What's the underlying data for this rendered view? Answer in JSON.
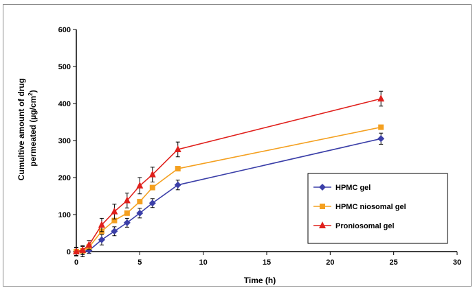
{
  "chart_data": {
    "type": "line",
    "title": "",
    "xlabel": "Time (h)",
    "ylabel_line1": "Cumultive amount of drug",
    "ylabel_line2": "permeated (µg/cm",
    "ylabel_superscript": "2",
    "ylabel_close": ")",
    "xlim": [
      0,
      30
    ],
    "ylim": [
      0,
      600
    ],
    "xticks": [
      0,
      5,
      10,
      15,
      20,
      25,
      30
    ],
    "yticks": [
      0,
      100,
      200,
      300,
      400,
      500,
      600
    ],
    "grid": false,
    "legend_position": "bottom-right",
    "x": [
      0,
      0.5,
      1,
      2,
      3,
      4,
      5,
      6,
      8,
      24
    ],
    "series": [
      {
        "name": "HPMC gel",
        "color": "#3b3fa8",
        "marker": "diamond",
        "values": [
          0,
          0,
          3,
          32,
          55,
          78,
          104,
          131,
          180,
          305
        ],
        "errors": [
          12,
          14,
          8,
          14,
          12,
          12,
          13,
          12,
          13,
          15
        ]
      },
      {
        "name": "HPMC niosomal gel",
        "color": "#f4a020",
        "marker": "square",
        "values": [
          0,
          2,
          12,
          55,
          84,
          104,
          135,
          173,
          224,
          336
        ],
        "errors": [
          0,
          0,
          0,
          0,
          0,
          0,
          0,
          0,
          0,
          0
        ]
      },
      {
        "name": "Proniosomal gel",
        "color": "#e0201c",
        "marker": "triangle",
        "values": [
          0,
          4,
          18,
          72,
          108,
          138,
          178,
          208,
          276,
          413
        ],
        "errors": [
          10,
          12,
          12,
          18,
          20,
          20,
          22,
          20,
          20,
          20
        ]
      }
    ]
  }
}
